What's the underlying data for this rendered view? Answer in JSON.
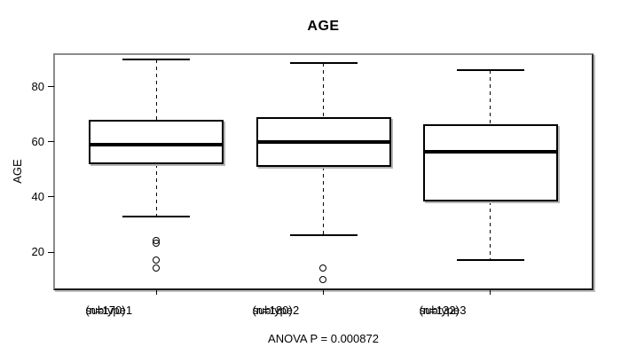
{
  "chart_data": {
    "type": "boxplot",
    "title": "AGE",
    "ylabel": "AGE",
    "xlabel": "",
    "ylim": [
      6.5,
      91.5
    ],
    "yticks": [
      20,
      40,
      60,
      80
    ],
    "grid": false,
    "legend": "none",
    "categories": [
      "subtype1",
      "subtype2",
      "subtype3"
    ],
    "category_sublabels": [
      "(n=170)",
      "(n=180)",
      "(n=132)"
    ],
    "annotation": "ANOVA P = 0.000872",
    "series": [
      {
        "name": "subtype1",
        "n": 170,
        "lower_whisker": 33,
        "q1": 52,
        "median": 59,
        "q3": 68,
        "upper_whisker": 90,
        "outliers": [
          24,
          23,
          17,
          14
        ]
      },
      {
        "name": "subtype2",
        "n": 180,
        "lower_whisker": 26,
        "q1": 51,
        "median": 60,
        "q3": 69,
        "upper_whisker": 88.5,
        "outliers": [
          14,
          10
        ]
      },
      {
        "name": "subtype3",
        "n": 132,
        "lower_whisker": 17,
        "q1": 38.5,
        "median": 56.5,
        "q3": 66.5,
        "upper_whisker": 86,
        "outliers": []
      }
    ],
    "colors": {
      "line": "#000000",
      "box_fill": "#ffffff",
      "frame_light": "#8a8a8a",
      "frame_dark": "#1a1a1a",
      "shadow": "#b5b5b5",
      "background": "#ffffff"
    }
  }
}
